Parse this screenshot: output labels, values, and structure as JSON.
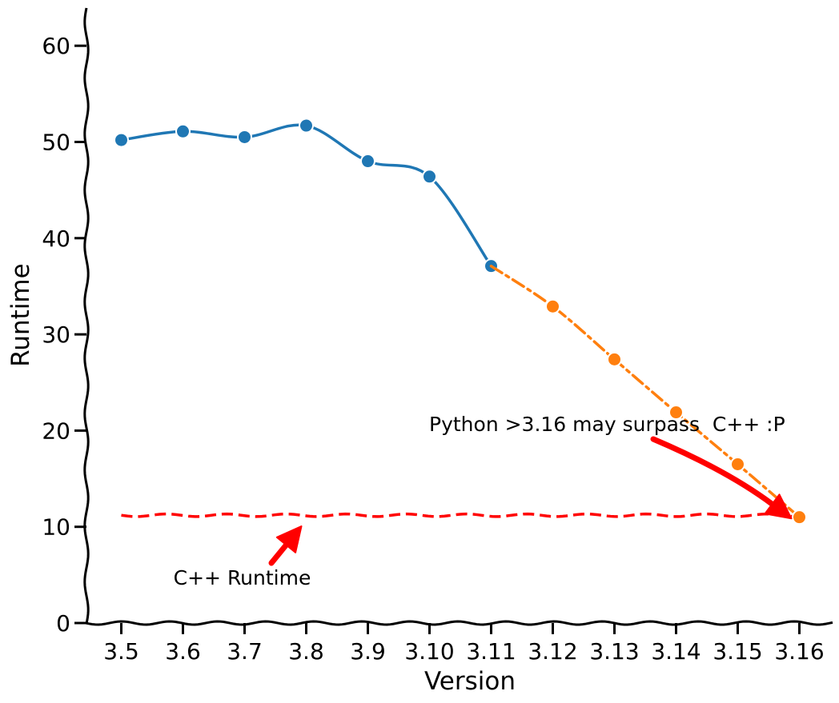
{
  "chart_data": {
    "type": "line",
    "title": "",
    "xlabel": "Version",
    "ylabel": "Runtime",
    "categories": [
      "3.5",
      "3.6",
      "3.7",
      "3.8",
      "3.9",
      "3.10",
      "3.11",
      "3.12",
      "3.13",
      "3.14",
      "3.15",
      "3.16"
    ],
    "ylim": [
      0,
      64
    ],
    "yticks": [
      0,
      10,
      20,
      30,
      40,
      50,
      60
    ],
    "grid": false,
    "series": [
      {
        "color": "#1f77b4",
        "line_style": "solid",
        "points": [
          {
            "x": "3.5",
            "y": 50.2
          },
          {
            "x": "3.6",
            "y": 51.1
          },
          {
            "x": "3.7",
            "y": 50.5
          },
          {
            "x": "3.8",
            "y": 51.7
          },
          {
            "x": "3.9",
            "y": 48.0
          },
          {
            "x": "3.10",
            "y": 46.4
          },
          {
            "x": "3.11",
            "y": 37.1
          }
        ]
      },
      {
        "color": "#ff7f0e",
        "line_style": "dashdot",
        "points": [
          {
            "x": "3.11",
            "y": 37.1
          },
          {
            "x": "3.12",
            "y": 32.9
          },
          {
            "x": "3.13",
            "y": 27.4
          },
          {
            "x": "3.14",
            "y": 21.9
          },
          {
            "x": "3.15",
            "y": 16.5
          },
          {
            "x": "3.16",
            "y": 11.0
          }
        ]
      }
    ],
    "reference_line": {
      "y": 11.2,
      "color": "#ff0000",
      "line_style": "dashed",
      "x_start": "3.5",
      "x_end": "3.16"
    },
    "annotations": [
      {
        "text": "C++ Runtime",
        "text_x": "3.7",
        "text_y": 4.5,
        "arrow_to_x": "3.8",
        "arrow_to_y": 10.3,
        "arrow_color": "#ff0000"
      },
      {
        "text": "Python >3.16 may surpass  C++ :P",
        "text_x": "3.13",
        "text_y": 20.4,
        "arrow_to_x": "3.16",
        "arrow_to_y": 11.2,
        "arrow_color": "#ff0000"
      }
    ]
  }
}
